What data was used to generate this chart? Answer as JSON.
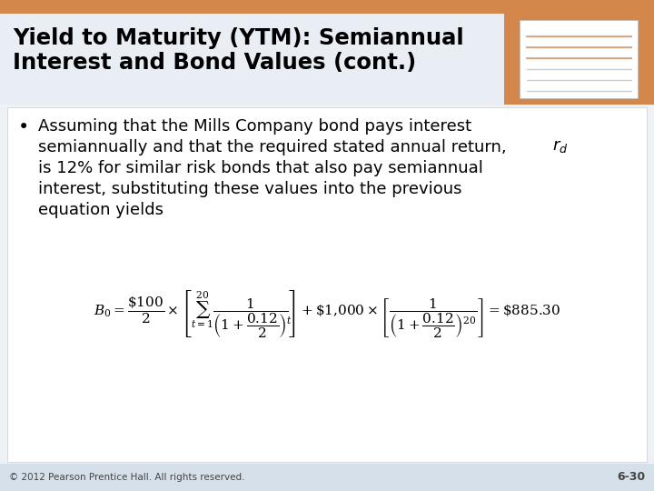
{
  "title_line1": "Yield to Maturity (YTM): Semiannual",
  "title_line2": "Interest and Bond Values (cont.)",
  "title_bg_color": "#E8EEF4",
  "title_text_color": "#000000",
  "header_top_bar_color": "#D4874A",
  "body_bg_color": "#FFFFFF",
  "footer_bg_color": "#D6E0EA",
  "bullet_lines": [
    "Assuming that the Mills Company bond pays interest",
    "semiannually and that the required stated annual return,",
    "is 12% for similar risk bonds that also pay semiannual",
    "interest, substituting these values into the previous",
    "equation yields"
  ],
  "footer_left": "© 2012 Pearson Prentice Hall. All rights reserved.",
  "footer_right": "6-30",
  "body_text_color": "#000000",
  "footer_text_color": "#444444"
}
